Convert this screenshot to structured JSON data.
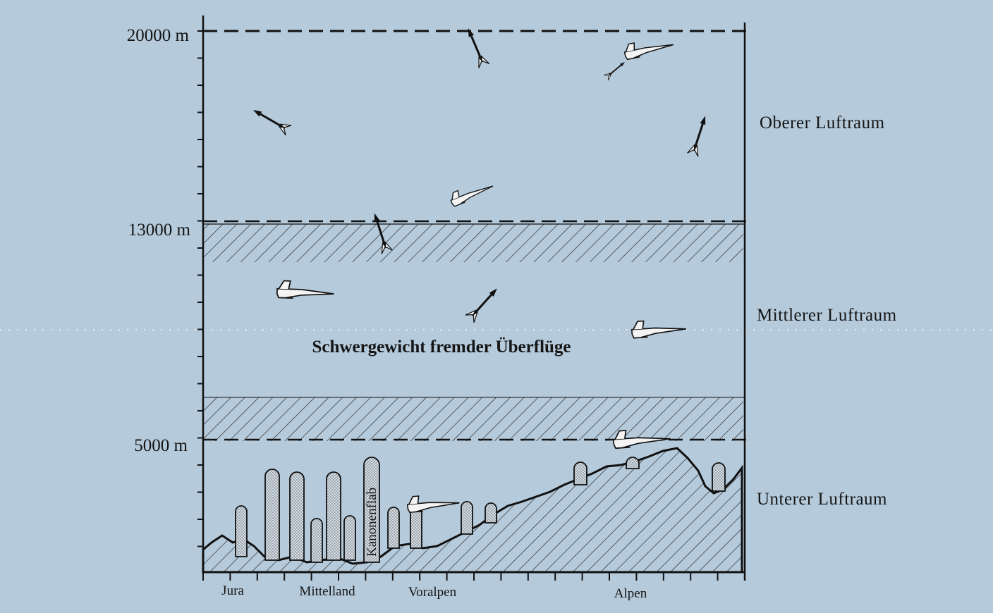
{
  "altitudes": {
    "top": "20000 m",
    "middle": "13000 m",
    "low": "5000 m"
  },
  "zones": {
    "upper": "Oberer Luftraum",
    "middle": "Mittlerer Luftraum",
    "lower": "Unterer Luftraum"
  },
  "center_caption": "Schwergewicht fremder Überflüge",
  "flak_label": "Kanonenflab",
  "regions": {
    "jura": "Jura",
    "mittelland": "Mittelland",
    "voralpen": "Voralpen",
    "alpen": "Alpen"
  },
  "colors": {
    "background": "#b5cadb",
    "ink": "#151515",
    "aircraft_fill": "#f4f4f4"
  }
}
